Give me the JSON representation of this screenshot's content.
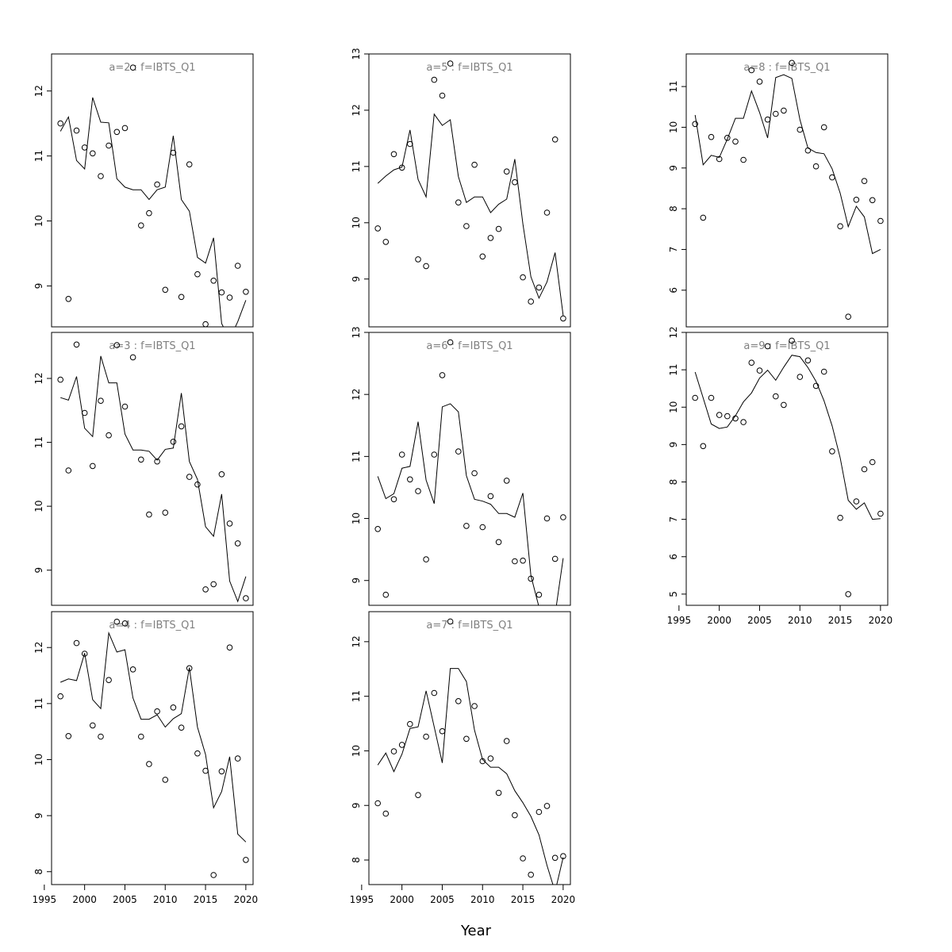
{
  "figure": {
    "xlabel": "Year"
  },
  "chart_data": [
    {
      "type": "scatter",
      "title": "a=2 : f=IBTS_Q1",
      "xlim": [
        1995.9,
        2020.9
      ],
      "ylim": [
        8.37,
        12.57
      ],
      "xticks": [],
      "yticks": [
        9,
        10,
        11,
        12
      ],
      "points": {
        "x": [
          1997,
          1998,
          1999,
          2000,
          2001,
          2002,
          2003,
          2004,
          2005,
          2006,
          2007,
          2008,
          2009,
          2010,
          2011,
          2012,
          2013,
          2014,
          2015,
          2016,
          2017,
          2018,
          2019,
          2020
        ],
        "y": [
          11.5,
          8.8,
          11.39,
          11.13,
          11.04,
          10.69,
          11.16,
          11.37,
          11.43,
          12.36,
          9.93,
          10.12,
          10.56,
          8.94,
          11.05,
          8.83,
          10.87,
          9.18,
          8.41,
          9.08,
          8.9,
          8.82,
          9.31,
          8.91
        ]
      },
      "fit": {
        "x": [
          1997,
          1998,
          1999,
          2000,
          2001,
          2002,
          2003,
          2004,
          2005,
          2006,
          2007,
          2008,
          2009,
          2010,
          2011,
          2012,
          2013,
          2014,
          2015,
          2016,
          2017,
          2018,
          2019,
          2020
        ],
        "y": [
          11.38,
          11.6,
          10.93,
          10.8,
          11.9,
          11.52,
          11.51,
          10.65,
          10.52,
          10.48,
          10.48,
          10.33,
          10.48,
          10.52,
          11.31,
          10.33,
          10.15,
          9.44,
          9.35,
          9.74,
          8.42,
          8.18,
          8.45,
          8.78
        ]
      }
    },
    {
      "type": "scatter",
      "title": "a=3 : f=IBTS_Q1",
      "xlim": [
        1995.9,
        2020.9
      ],
      "ylim": [
        8.45,
        12.72
      ],
      "xticks": [],
      "yticks": [
        9,
        10,
        11,
        12
      ],
      "points": {
        "x": [
          1997,
          1998,
          1999,
          2000,
          2001,
          2002,
          2003,
          2004,
          2005,
          2006,
          2007,
          2008,
          2009,
          2010,
          2011,
          2012,
          2013,
          2014,
          2015,
          2016,
          2017,
          2018,
          2019,
          2020
        ],
        "y": [
          11.98,
          10.56,
          12.53,
          11.46,
          10.63,
          11.65,
          11.11,
          12.52,
          11.56,
          12.33,
          10.73,
          9.87,
          10.7,
          9.9,
          11.01,
          11.25,
          10.46,
          10.34,
          8.7,
          8.78,
          10.5,
          9.73,
          9.42,
          8.56
        ]
      },
      "fit": {
        "x": [
          1997,
          1998,
          1999,
          2000,
          2001,
          2002,
          2003,
          2004,
          2005,
          2006,
          2007,
          2008,
          2009,
          2010,
          2011,
          2012,
          2013,
          2014,
          2015,
          2016,
          2017,
          2018,
          2019,
          2020
        ],
        "y": [
          11.7,
          11.66,
          12.03,
          11.22,
          11.09,
          12.35,
          11.93,
          11.93,
          11.13,
          10.88,
          10.88,
          10.86,
          10.72,
          10.89,
          10.91,
          11.77,
          10.7,
          10.42,
          9.68,
          9.53,
          10.19,
          8.83,
          8.51,
          8.9
        ]
      }
    },
    {
      "type": "scatter",
      "title": "a=4 : f=IBTS_Q1",
      "xlim": [
        1995.9,
        2020.9
      ],
      "ylim": [
        7.77,
        12.64
      ],
      "xticks": [
        1995,
        2000,
        2005,
        2010,
        2015,
        2020
      ],
      "yticks": [
        8,
        9,
        10,
        11,
        12
      ],
      "points": {
        "x": [
          1997,
          1998,
          1999,
          2000,
          2001,
          2002,
          2003,
          2004,
          2005,
          2006,
          2007,
          2008,
          2009,
          2010,
          2011,
          2012,
          2013,
          2014,
          2015,
          2016,
          2017,
          2018,
          2019,
          2020
        ],
        "y": [
          11.13,
          10.42,
          12.08,
          11.89,
          10.61,
          10.41,
          11.42,
          12.46,
          12.43,
          11.61,
          10.41,
          9.92,
          10.86,
          9.64,
          10.93,
          10.57,
          11.63,
          10.11,
          9.8,
          7.94,
          9.79,
          12.0,
          10.02,
          8.21
        ]
      },
      "fit": {
        "x": [
          1997,
          1998,
          1999,
          2000,
          2001,
          2002,
          2003,
          2004,
          2005,
          2006,
          2007,
          2008,
          2009,
          2010,
          2011,
          2012,
          2013,
          2014,
          2015,
          2016,
          2017,
          2018,
          2019,
          2020
        ],
        "y": [
          11.38,
          11.44,
          11.41,
          11.9,
          11.07,
          10.91,
          12.26,
          11.92,
          11.96,
          11.1,
          10.72,
          10.72,
          10.8,
          10.58,
          10.73,
          10.82,
          11.64,
          10.58,
          10.09,
          9.14,
          9.43,
          10.05,
          8.67,
          8.53
        ]
      }
    },
    {
      "type": "scatter",
      "title": "a=5 : f=IBTS_Q1",
      "xlim": [
        1995.9,
        2020.9
      ],
      "ylim": [
        8.15,
        13.0
      ],
      "xticks": [],
      "yticks": [
        9,
        10,
        11,
        12,
        13
      ],
      "points": {
        "x": [
          1997,
          1998,
          1999,
          2000,
          2001,
          2002,
          2003,
          2004,
          2005,
          2006,
          2007,
          2008,
          2009,
          2010,
          2011,
          2012,
          2013,
          2014,
          2015,
          2016,
          2017,
          2018,
          2019,
          2020
        ],
        "y": [
          9.9,
          9.66,
          11.22,
          10.98,
          11.4,
          9.35,
          9.23,
          12.54,
          12.26,
          12.83,
          10.36,
          9.94,
          11.03,
          9.4,
          9.73,
          9.89,
          10.91,
          10.72,
          9.03,
          8.6,
          8.85,
          10.18,
          11.48,
          8.3
        ]
      },
      "fit": {
        "x": [
          1997,
          1998,
          1999,
          2000,
          2001,
          2002,
          2003,
          2004,
          2005,
          2006,
          2007,
          2008,
          2009,
          2010,
          2011,
          2012,
          2013,
          2014,
          2015,
          2016,
          2017,
          2018,
          2019,
          2020
        ],
        "y": [
          10.7,
          10.83,
          10.94,
          10.99,
          11.65,
          10.77,
          10.46,
          11.93,
          11.73,
          11.83,
          10.82,
          10.36,
          10.46,
          10.46,
          10.18,
          10.33,
          10.42,
          11.13,
          9.98,
          9.04,
          8.66,
          8.95,
          9.47,
          8.35
        ]
      }
    },
    {
      "type": "scatter",
      "title": "a=6 : f=IBTS_Q1",
      "xlim": [
        1995.9,
        2020.9
      ],
      "ylim": [
        8.6,
        13.0
      ],
      "xticks": [],
      "yticks": [
        9,
        10,
        11,
        12,
        13
      ],
      "points": {
        "x": [
          1997,
          1998,
          1999,
          2000,
          2001,
          2002,
          2003,
          2004,
          2005,
          2006,
          2007,
          2008,
          2009,
          2010,
          2011,
          2012,
          2013,
          2014,
          2015,
          2016,
          2017,
          2018,
          2019,
          2020
        ],
        "y": [
          9.83,
          8.77,
          10.31,
          11.03,
          10.63,
          10.44,
          9.34,
          11.03,
          12.31,
          12.84,
          11.08,
          9.88,
          10.73,
          9.86,
          10.36,
          9.62,
          10.61,
          9.31,
          9.32,
          9.03,
          8.77,
          10.0,
          9.35,
          10.02
        ]
      },
      "fit": {
        "x": [
          1997,
          1998,
          1999,
          2000,
          2001,
          2002,
          2003,
          2004,
          2005,
          2006,
          2007,
          2008,
          2009,
          2010,
          2011,
          2012,
          2013,
          2014,
          2015,
          2016,
          2017,
          2018,
          2019,
          2020
        ],
        "y": [
          10.68,
          10.32,
          10.4,
          10.81,
          10.84,
          11.56,
          10.62,
          10.24,
          11.8,
          11.85,
          11.72,
          10.69,
          10.31,
          10.28,
          10.23,
          10.08,
          10.08,
          10.02,
          10.41,
          9.08,
          8.57,
          8.58,
          8.45,
          9.36
        ]
      }
    },
    {
      "type": "scatter",
      "title": "a=7 : f=IBTS_Q1",
      "xlim": [
        1995.9,
        2020.9
      ],
      "ylim": [
        7.55,
        12.55
      ],
      "xticks": [
        1995,
        2000,
        2005,
        2010,
        2015,
        2020
      ],
      "yticks": [
        8,
        9,
        10,
        11,
        12
      ],
      "points": {
        "x": [
          1997,
          1998,
          1999,
          2000,
          2001,
          2002,
          2003,
          2004,
          2005,
          2006,
          2007,
          2008,
          2009,
          2010,
          2011,
          2012,
          2013,
          2014,
          2015,
          2016,
          2017,
          2018,
          2019,
          2020
        ],
        "y": [
          9.04,
          8.85,
          9.99,
          10.11,
          10.49,
          9.19,
          10.26,
          11.06,
          10.36,
          12.37,
          10.91,
          10.22,
          10.82,
          9.81,
          9.86,
          9.23,
          10.18,
          8.82,
          8.03,
          7.73,
          8.88,
          8.99,
          8.04,
          8.07
        ]
      },
      "fit": {
        "x": [
          1997,
          1998,
          1999,
          2000,
          2001,
          2002,
          2003,
          2004,
          2005,
          2006,
          2007,
          2008,
          2009,
          2010,
          2011,
          2012,
          2013,
          2014,
          2015,
          2016,
          2017,
          2018,
          2019,
          2020
        ],
        "y": [
          9.74,
          9.96,
          9.62,
          9.94,
          10.41,
          10.44,
          11.1,
          10.44,
          9.78,
          11.51,
          11.51,
          11.27,
          10.38,
          9.84,
          9.7,
          9.7,
          9.58,
          9.27,
          9.05,
          8.8,
          8.46,
          7.9,
          7.42,
          8.05
        ]
      }
    },
    {
      "type": "scatter",
      "title": "a=8 : f=IBTS_Q1",
      "xlim": [
        1995.9,
        2020.9
      ],
      "ylim": [
        5.1,
        11.8
      ],
      "xticks": [],
      "yticks": [
        6,
        7,
        8,
        9,
        10,
        11
      ],
      "points": {
        "x": [
          1997,
          1998,
          1999,
          2000,
          2001,
          2002,
          2003,
          2004,
          2005,
          2006,
          2007,
          2008,
          2009,
          2010,
          2011,
          2012,
          2013,
          2014,
          2015,
          2016,
          2017,
          2018,
          2019,
          2020
        ],
        "y": [
          10.08,
          7.78,
          9.76,
          9.22,
          9.74,
          9.65,
          9.2,
          11.4,
          11.12,
          10.19,
          10.33,
          10.41,
          11.58,
          9.94,
          9.43,
          9.04,
          10.0,
          8.77,
          7.57,
          5.35,
          8.22,
          8.68,
          8.21,
          7.7
        ]
      },
      "fit": {
        "x": [
          1997,
          1998,
          1999,
          2000,
          2001,
          2002,
          2003,
          2004,
          2005,
          2006,
          2007,
          2008,
          2009,
          2010,
          2011,
          2012,
          2013,
          2014,
          2015,
          2016,
          2017,
          2018,
          2019,
          2020
        ],
        "y": [
          10.3,
          9.08,
          9.31,
          9.26,
          9.71,
          10.22,
          10.22,
          10.89,
          10.36,
          9.74,
          11.22,
          11.29,
          11.2,
          10.19,
          9.49,
          9.38,
          9.35,
          8.98,
          8.38,
          7.56,
          8.06,
          7.8,
          6.9,
          7.0
        ]
      }
    },
    {
      "type": "scatter",
      "title": "a=9 : f=IBTS_Q1",
      "xlim": [
        1995.9,
        2020.9
      ],
      "ylim": [
        4.7,
        12.0
      ],
      "xticks": [
        1995,
        2000,
        2005,
        2010,
        2015,
        2020
      ],
      "yticks": [
        5,
        6,
        7,
        8,
        9,
        10,
        11,
        12
      ],
      "points": {
        "x": [
          1997,
          1998,
          1999,
          2000,
          2001,
          2002,
          2003,
          2004,
          2005,
          2006,
          2007,
          2008,
          2009,
          2010,
          2011,
          2012,
          2013,
          2014,
          2015,
          2016,
          2017,
          2018,
          2019,
          2020
        ],
        "y": [
          10.25,
          8.96,
          10.25,
          9.79,
          9.76,
          9.7,
          9.6,
          11.19,
          10.98,
          11.63,
          10.29,
          10.06,
          11.78,
          10.81,
          11.25,
          10.57,
          10.95,
          8.82,
          7.04,
          5.0,
          7.48,
          8.34,
          8.53,
          7.15
        ]
      },
      "fit": {
        "x": [
          1997,
          1998,
          1999,
          2000,
          2001,
          2002,
          2003,
          2004,
          2005,
          2006,
          2007,
          2008,
          2009,
          2010,
          2011,
          2012,
          2013,
          2014,
          2015,
          2016,
          2017,
          2018,
          2019,
          2020
        ],
        "y": [
          10.94,
          10.25,
          9.55,
          9.43,
          9.47,
          9.77,
          10.14,
          10.38,
          10.78,
          10.99,
          10.72,
          11.07,
          11.39,
          11.35,
          11.06,
          10.69,
          10.17,
          9.5,
          8.64,
          7.51,
          7.27,
          7.44,
          7.0,
          7.02
        ]
      }
    }
  ]
}
